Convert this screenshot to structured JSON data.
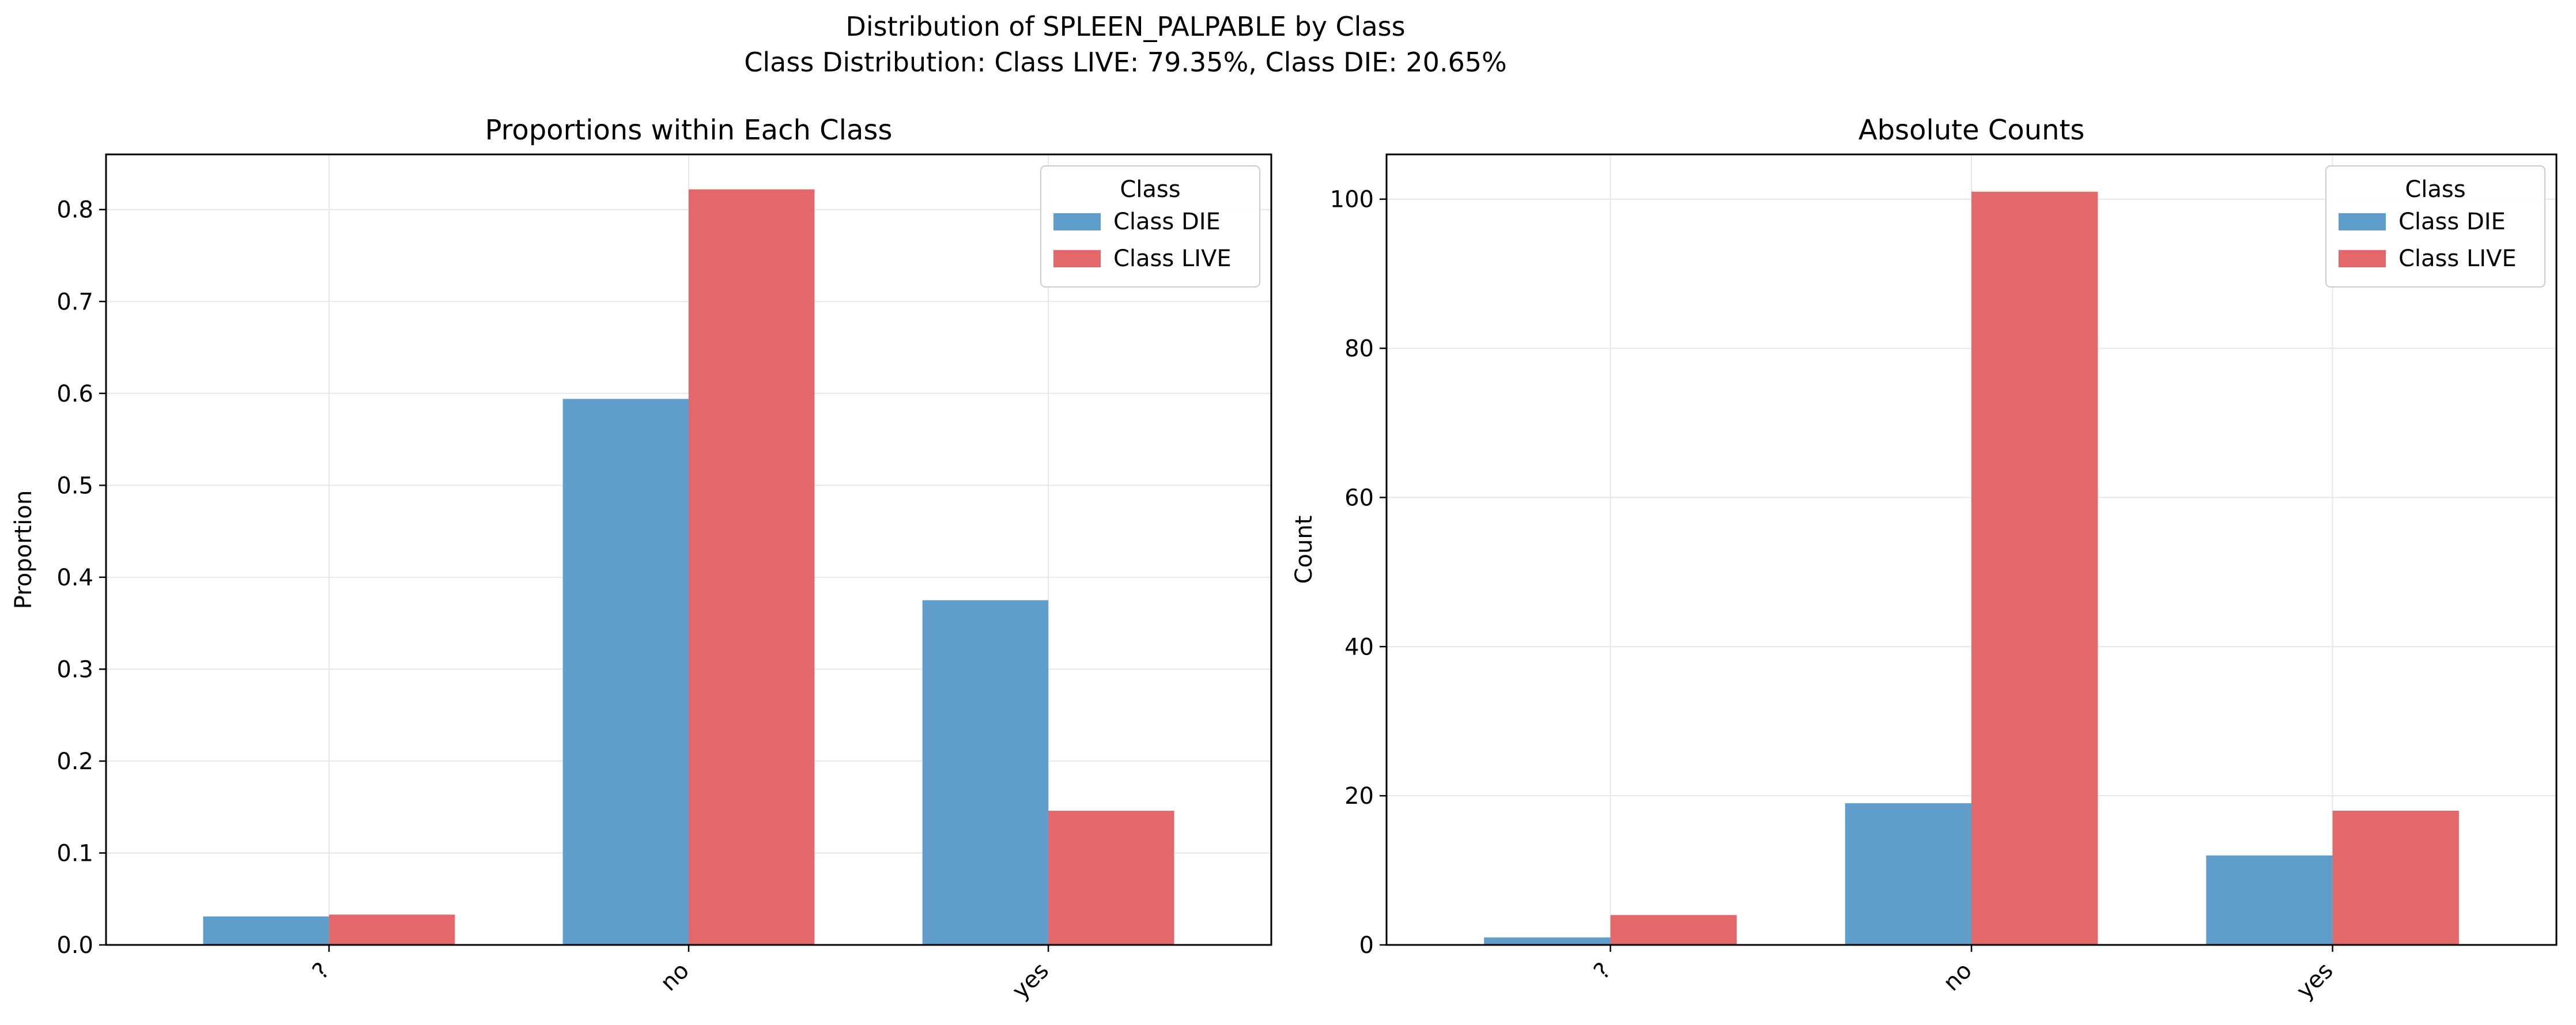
{
  "figure": {
    "suptitle_line1": "Distribution of SPLEEN_PALPABLE by Class",
    "suptitle_line2": "Class Distribution: Class LIVE: 79.35%, Class DIE: 20.65%"
  },
  "colors": {
    "die": "#5f9ecb",
    "live": "#e2686a",
    "grid": "#e6e6e6",
    "axis": "#000000"
  },
  "chart_data": [
    {
      "type": "bar",
      "title": "Proportions within Each Class",
      "xlabel": "",
      "ylabel": "Proportion",
      "categories": [
        "?",
        "no",
        "yes"
      ],
      "series": [
        {
          "name": "Class DIE",
          "values": [
            0.031,
            0.594,
            0.375
          ]
        },
        {
          "name": "Class LIVE",
          "values": [
            0.033,
            0.822,
            0.146
          ]
        }
      ],
      "ylim": [
        0,
        0.86
      ],
      "yticks": [
        0.0,
        0.1,
        0.2,
        0.3,
        0.4,
        0.5,
        0.6,
        0.7,
        0.8
      ],
      "ytick_labels": [
        "0.0",
        "0.1",
        "0.2",
        "0.3",
        "0.4",
        "0.5",
        "0.6",
        "0.7",
        "0.8"
      ],
      "grid": true,
      "legend_title": "Class",
      "legend_position": "top-right"
    },
    {
      "type": "bar",
      "title": "Absolute Counts",
      "xlabel": "",
      "ylabel": "Count",
      "categories": [
        "?",
        "no",
        "yes"
      ],
      "series": [
        {
          "name": "Class DIE",
          "values": [
            1,
            19,
            12
          ]
        },
        {
          "name": "Class LIVE",
          "values": [
            4,
            101,
            18
          ]
        }
      ],
      "ylim": [
        0,
        106
      ],
      "yticks": [
        0,
        20,
        40,
        60,
        80,
        100
      ],
      "ytick_labels": [
        "0",
        "20",
        "40",
        "60",
        "80",
        "100"
      ],
      "grid": true,
      "legend_title": "Class",
      "legend_position": "top-right"
    }
  ]
}
